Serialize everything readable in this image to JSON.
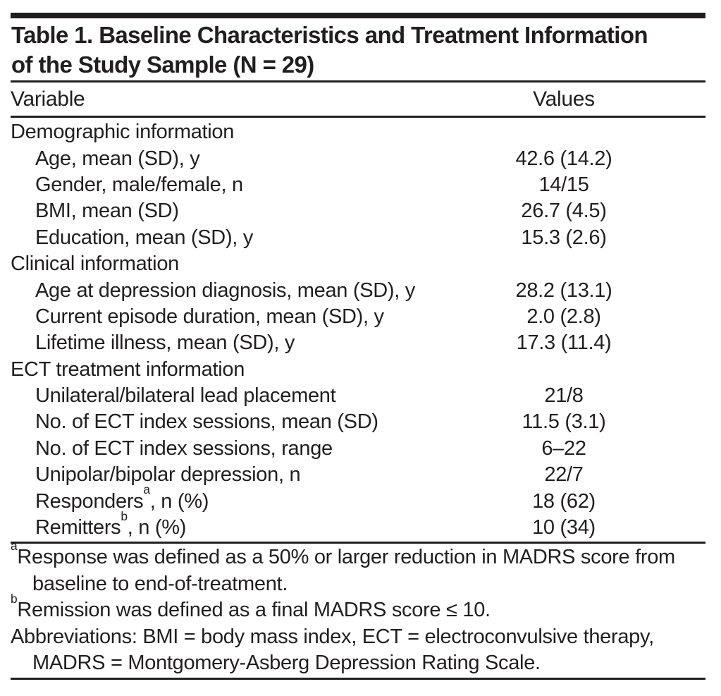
{
  "page": {
    "background_color": "#ffffff",
    "text_color": "#221e1f",
    "rule_color": "#221e1f"
  },
  "table": {
    "title_line1": "Table 1. Baseline Characteristics and Treatment Information",
    "title_line2": "of the Study Sample (N = 29)",
    "header": {
      "variable": "Variable",
      "values": "Values"
    },
    "rows": [
      {
        "type": "section",
        "label": "Demographic information",
        "value": ""
      },
      {
        "type": "item",
        "label": "Age, mean (SD), y",
        "value": "42.6 (14.2)"
      },
      {
        "type": "item",
        "label": "Gender, male/female, n",
        "value": "14/15"
      },
      {
        "type": "item",
        "label": "BMI, mean (SD)",
        "value": "26.7 (4.5)"
      },
      {
        "type": "item",
        "label": "Education, mean (SD), y",
        "value": "15.3 (2.6)"
      },
      {
        "type": "section",
        "label": "Clinical information",
        "value": ""
      },
      {
        "type": "item",
        "label": "Age at depression diagnosis, mean (SD), y",
        "value": "28.2 (13.1)"
      },
      {
        "type": "item",
        "label": "Current episode duration, mean (SD), y",
        "value": "2.0 (2.8)"
      },
      {
        "type": "item",
        "label": "Lifetime illness, mean (SD), y",
        "value": "17.3 (11.4)"
      },
      {
        "type": "section",
        "label": "ECT treatment information",
        "value": ""
      },
      {
        "type": "item",
        "label": "Unilateral/bilateral lead placement",
        "value": "21/8"
      },
      {
        "type": "item",
        "label": "No. of ECT index sessions, mean (SD)",
        "value": "11.5 (3.1)"
      },
      {
        "type": "item",
        "label": "No. of ECT index sessions, range",
        "value": "6–22"
      },
      {
        "type": "item",
        "label": "Unipolar/bipolar depression, n",
        "value": "22/7"
      },
      {
        "type": "item",
        "label_pre": "Responders",
        "label_sup": "a",
        "label_post": ", n (%)",
        "value": "18 (62)"
      },
      {
        "type": "item",
        "label_pre": "Remitters",
        "label_sup": "b",
        "label_post": ", n (%)",
        "value": "10 (34)"
      }
    ]
  },
  "footnotes": {
    "a": {
      "sup": "a",
      "line1": "Response was defined as a 50% or larger reduction in MADRS score from",
      "line2": "baseline to end-of-treatment."
    },
    "b": {
      "sup": "b",
      "line1": "Remission was defined as a final MADRS score ≤ 10."
    },
    "abbreviations": {
      "line1": "Abbreviations: BMI = body mass index, ECT = electroconvulsive therapy,",
      "line2": "MADRS = Montgomery-Asberg Depression Rating Scale."
    }
  }
}
